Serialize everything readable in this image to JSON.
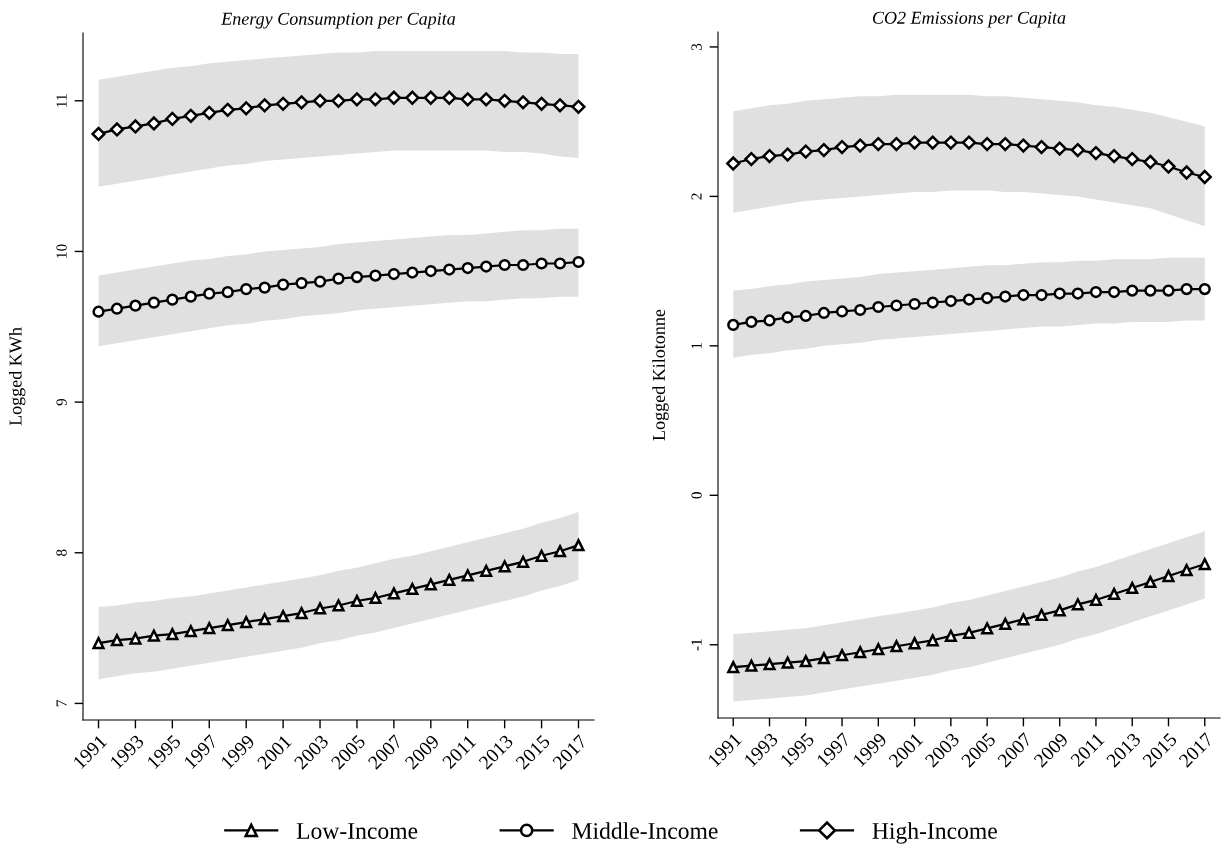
{
  "chart_data": [
    {
      "type": "line",
      "title": "Energy Consumption per Capita",
      "ylabel": "Logged KWh",
      "x": [
        1991,
        1992,
        1993,
        1994,
        1995,
        1996,
        1997,
        1998,
        1999,
        2000,
        2001,
        2002,
        2003,
        2004,
        2005,
        2006,
        2007,
        2008,
        2009,
        2010,
        2011,
        2012,
        2013,
        2014,
        2015,
        2016,
        2017
      ],
      "xlim": [
        1990.16,
        2017.84
      ],
      "xticks": [
        1991,
        1993,
        1995,
        1997,
        1999,
        2001,
        2003,
        2005,
        2007,
        2009,
        2011,
        2013,
        2015,
        2017
      ],
      "ylim": [
        6.89,
        11.45
      ],
      "yticks": [
        7,
        8,
        9,
        10,
        11
      ],
      "grid": false,
      "legend": "bottom",
      "line_style": "solid",
      "series": [
        {
          "name": "Low-Income",
          "color": "#000000",
          "marker": "triangle",
          "values": [
            7.4,
            7.42,
            7.43,
            7.45,
            7.46,
            7.48,
            7.5,
            7.52,
            7.54,
            7.56,
            7.58,
            7.6,
            7.63,
            7.65,
            7.68,
            7.7,
            7.73,
            7.76,
            7.79,
            7.82,
            7.85,
            7.88,
            7.91,
            7.94,
            7.98,
            8.01,
            8.05
          ],
          "upper": [
            7.64,
            7.65,
            7.67,
            7.68,
            7.7,
            7.71,
            7.73,
            7.75,
            7.77,
            7.79,
            7.81,
            7.83,
            7.85,
            7.88,
            7.9,
            7.93,
            7.96,
            7.98,
            8.01,
            8.04,
            8.07,
            8.1,
            8.13,
            8.16,
            8.2,
            8.23,
            8.27
          ],
          "lower": [
            7.16,
            7.18,
            7.2,
            7.21,
            7.23,
            7.25,
            7.27,
            7.29,
            7.31,
            7.33,
            7.35,
            7.37,
            7.4,
            7.42,
            7.45,
            7.47,
            7.5,
            7.53,
            7.56,
            7.59,
            7.62,
            7.65,
            7.68,
            7.71,
            7.75,
            7.78,
            7.82
          ]
        },
        {
          "name": "Middle-Income",
          "color": "#000000",
          "marker": "circle",
          "values": [
            9.6,
            9.62,
            9.64,
            9.66,
            9.68,
            9.7,
            9.72,
            9.73,
            9.75,
            9.76,
            9.78,
            9.79,
            9.8,
            9.82,
            9.83,
            9.84,
            9.85,
            9.86,
            9.87,
            9.88,
            9.89,
            9.9,
            9.91,
            9.91,
            9.92,
            9.92,
            9.93
          ],
          "upper": [
            9.84,
            9.86,
            9.88,
            9.9,
            9.92,
            9.94,
            9.95,
            9.97,
            9.98,
            10.0,
            10.01,
            10.02,
            10.03,
            10.05,
            10.06,
            10.07,
            10.08,
            10.09,
            10.1,
            10.11,
            10.11,
            10.12,
            10.13,
            10.14,
            10.14,
            10.15,
            10.15
          ],
          "lower": [
            9.37,
            9.39,
            9.41,
            9.43,
            9.45,
            9.47,
            9.49,
            9.51,
            9.52,
            9.54,
            9.55,
            9.57,
            9.58,
            9.59,
            9.61,
            9.62,
            9.63,
            9.64,
            9.65,
            9.66,
            9.67,
            9.67,
            9.68,
            9.69,
            9.69,
            9.7,
            9.7
          ]
        },
        {
          "name": "High-Income",
          "color": "#000000",
          "marker": "diamond",
          "values": [
            10.78,
            10.81,
            10.83,
            10.85,
            10.88,
            10.9,
            10.92,
            10.94,
            10.95,
            10.97,
            10.98,
            10.99,
            11.0,
            11.0,
            11.01,
            11.01,
            11.02,
            11.02,
            11.02,
            11.02,
            11.01,
            11.01,
            11.0,
            10.99,
            10.98,
            10.97,
            10.96
          ],
          "upper": [
            11.14,
            11.16,
            11.18,
            11.2,
            11.22,
            11.23,
            11.25,
            11.26,
            11.27,
            11.28,
            11.29,
            11.3,
            11.31,
            11.32,
            11.32,
            11.33,
            11.33,
            11.33,
            11.33,
            11.33,
            11.33,
            11.33,
            11.33,
            11.32,
            11.32,
            11.31,
            11.31
          ],
          "lower": [
            10.43,
            10.45,
            10.47,
            10.49,
            10.51,
            10.53,
            10.55,
            10.57,
            10.58,
            10.6,
            10.61,
            10.62,
            10.63,
            10.64,
            10.65,
            10.66,
            10.67,
            10.67,
            10.67,
            10.67,
            10.67,
            10.67,
            10.66,
            10.66,
            10.65,
            10.63,
            10.62
          ]
        }
      ]
    },
    {
      "type": "line",
      "title": "CO2 Emissions per Capita",
      "ylabel": "Logged Kilotonne",
      "x": [
        1991,
        1992,
        1993,
        1994,
        1995,
        1996,
        1997,
        1998,
        1999,
        2000,
        2001,
        2002,
        2003,
        2004,
        2005,
        2006,
        2007,
        2008,
        2009,
        2010,
        2011,
        2012,
        2013,
        2014,
        2015,
        2016,
        2017
      ],
      "xlim": [
        1990.16,
        2017.84
      ],
      "xticks": [
        1991,
        1993,
        1995,
        1997,
        1999,
        2001,
        2003,
        2005,
        2007,
        2009,
        2011,
        2013,
        2015,
        2017
      ],
      "ylim": [
        -1.49,
        3.1
      ],
      "yticks": [
        -1,
        0,
        1,
        2,
        3
      ],
      "grid": false,
      "line_style": "solid",
      "series": [
        {
          "color": "#000000",
          "marker": "triangle",
          "values": [
            -1.15,
            -1.14,
            -1.13,
            -1.12,
            -1.11,
            -1.09,
            -1.07,
            -1.05,
            -1.03,
            -1.01,
            -0.99,
            -0.97,
            -0.94,
            -0.92,
            -0.89,
            -0.86,
            -0.83,
            -0.8,
            -0.77,
            -0.73,
            -0.7,
            -0.66,
            -0.62,
            -0.58,
            -0.54,
            -0.5,
            -0.46
          ],
          "upper": [
            -0.93,
            -0.92,
            -0.91,
            -0.9,
            -0.89,
            -0.87,
            -0.85,
            -0.83,
            -0.81,
            -0.79,
            -0.77,
            -0.75,
            -0.72,
            -0.7,
            -0.67,
            -0.64,
            -0.61,
            -0.58,
            -0.55,
            -0.51,
            -0.48,
            -0.44,
            -0.4,
            -0.36,
            -0.32,
            -0.28,
            -0.24
          ],
          "lower": [
            -1.38,
            -1.37,
            -1.36,
            -1.35,
            -1.34,
            -1.32,
            -1.3,
            -1.28,
            -1.26,
            -1.24,
            -1.22,
            -1.2,
            -1.17,
            -1.15,
            -1.12,
            -1.09,
            -1.06,
            -1.03,
            -1.0,
            -0.96,
            -0.93,
            -0.89,
            -0.85,
            -0.81,
            -0.77,
            -0.73,
            -0.69
          ]
        },
        {
          "color": "#000000",
          "marker": "circle",
          "values": [
            1.14,
            1.16,
            1.17,
            1.19,
            1.2,
            1.22,
            1.23,
            1.24,
            1.26,
            1.27,
            1.28,
            1.29,
            1.3,
            1.31,
            1.32,
            1.33,
            1.34,
            1.34,
            1.35,
            1.35,
            1.36,
            1.36,
            1.37,
            1.37,
            1.37,
            1.38,
            1.38
          ],
          "upper": [
            1.37,
            1.38,
            1.4,
            1.41,
            1.43,
            1.44,
            1.45,
            1.46,
            1.48,
            1.49,
            1.5,
            1.51,
            1.52,
            1.53,
            1.54,
            1.54,
            1.55,
            1.56,
            1.56,
            1.57,
            1.57,
            1.58,
            1.58,
            1.58,
            1.59,
            1.59,
            1.59
          ],
          "lower": [
            0.92,
            0.94,
            0.95,
            0.97,
            0.98,
            1.0,
            1.01,
            1.02,
            1.04,
            1.05,
            1.06,
            1.07,
            1.08,
            1.09,
            1.1,
            1.11,
            1.12,
            1.13,
            1.13,
            1.14,
            1.15,
            1.15,
            1.16,
            1.16,
            1.16,
            1.17,
            1.17
          ]
        },
        {
          "color": "#000000",
          "marker": "diamond",
          "values": [
            2.22,
            2.25,
            2.27,
            2.28,
            2.3,
            2.31,
            2.33,
            2.34,
            2.35,
            2.35,
            2.36,
            2.36,
            2.36,
            2.36,
            2.35,
            2.35,
            2.34,
            2.33,
            2.32,
            2.31,
            2.29,
            2.27,
            2.25,
            2.23,
            2.2,
            2.16,
            2.13
          ],
          "upper": [
            2.57,
            2.59,
            2.61,
            2.62,
            2.64,
            2.65,
            2.66,
            2.67,
            2.67,
            2.68,
            2.68,
            2.68,
            2.68,
            2.68,
            2.67,
            2.67,
            2.66,
            2.65,
            2.64,
            2.63,
            2.61,
            2.6,
            2.58,
            2.56,
            2.53,
            2.5,
            2.47
          ],
          "lower": [
            1.89,
            1.91,
            1.93,
            1.95,
            1.97,
            1.98,
            1.99,
            2.0,
            2.01,
            2.02,
            2.03,
            2.03,
            2.04,
            2.04,
            2.04,
            2.03,
            2.03,
            2.02,
            2.01,
            2.0,
            1.98,
            1.96,
            1.94,
            1.92,
            1.88,
            1.84,
            1.8
          ]
        }
      ]
    }
  ]
}
